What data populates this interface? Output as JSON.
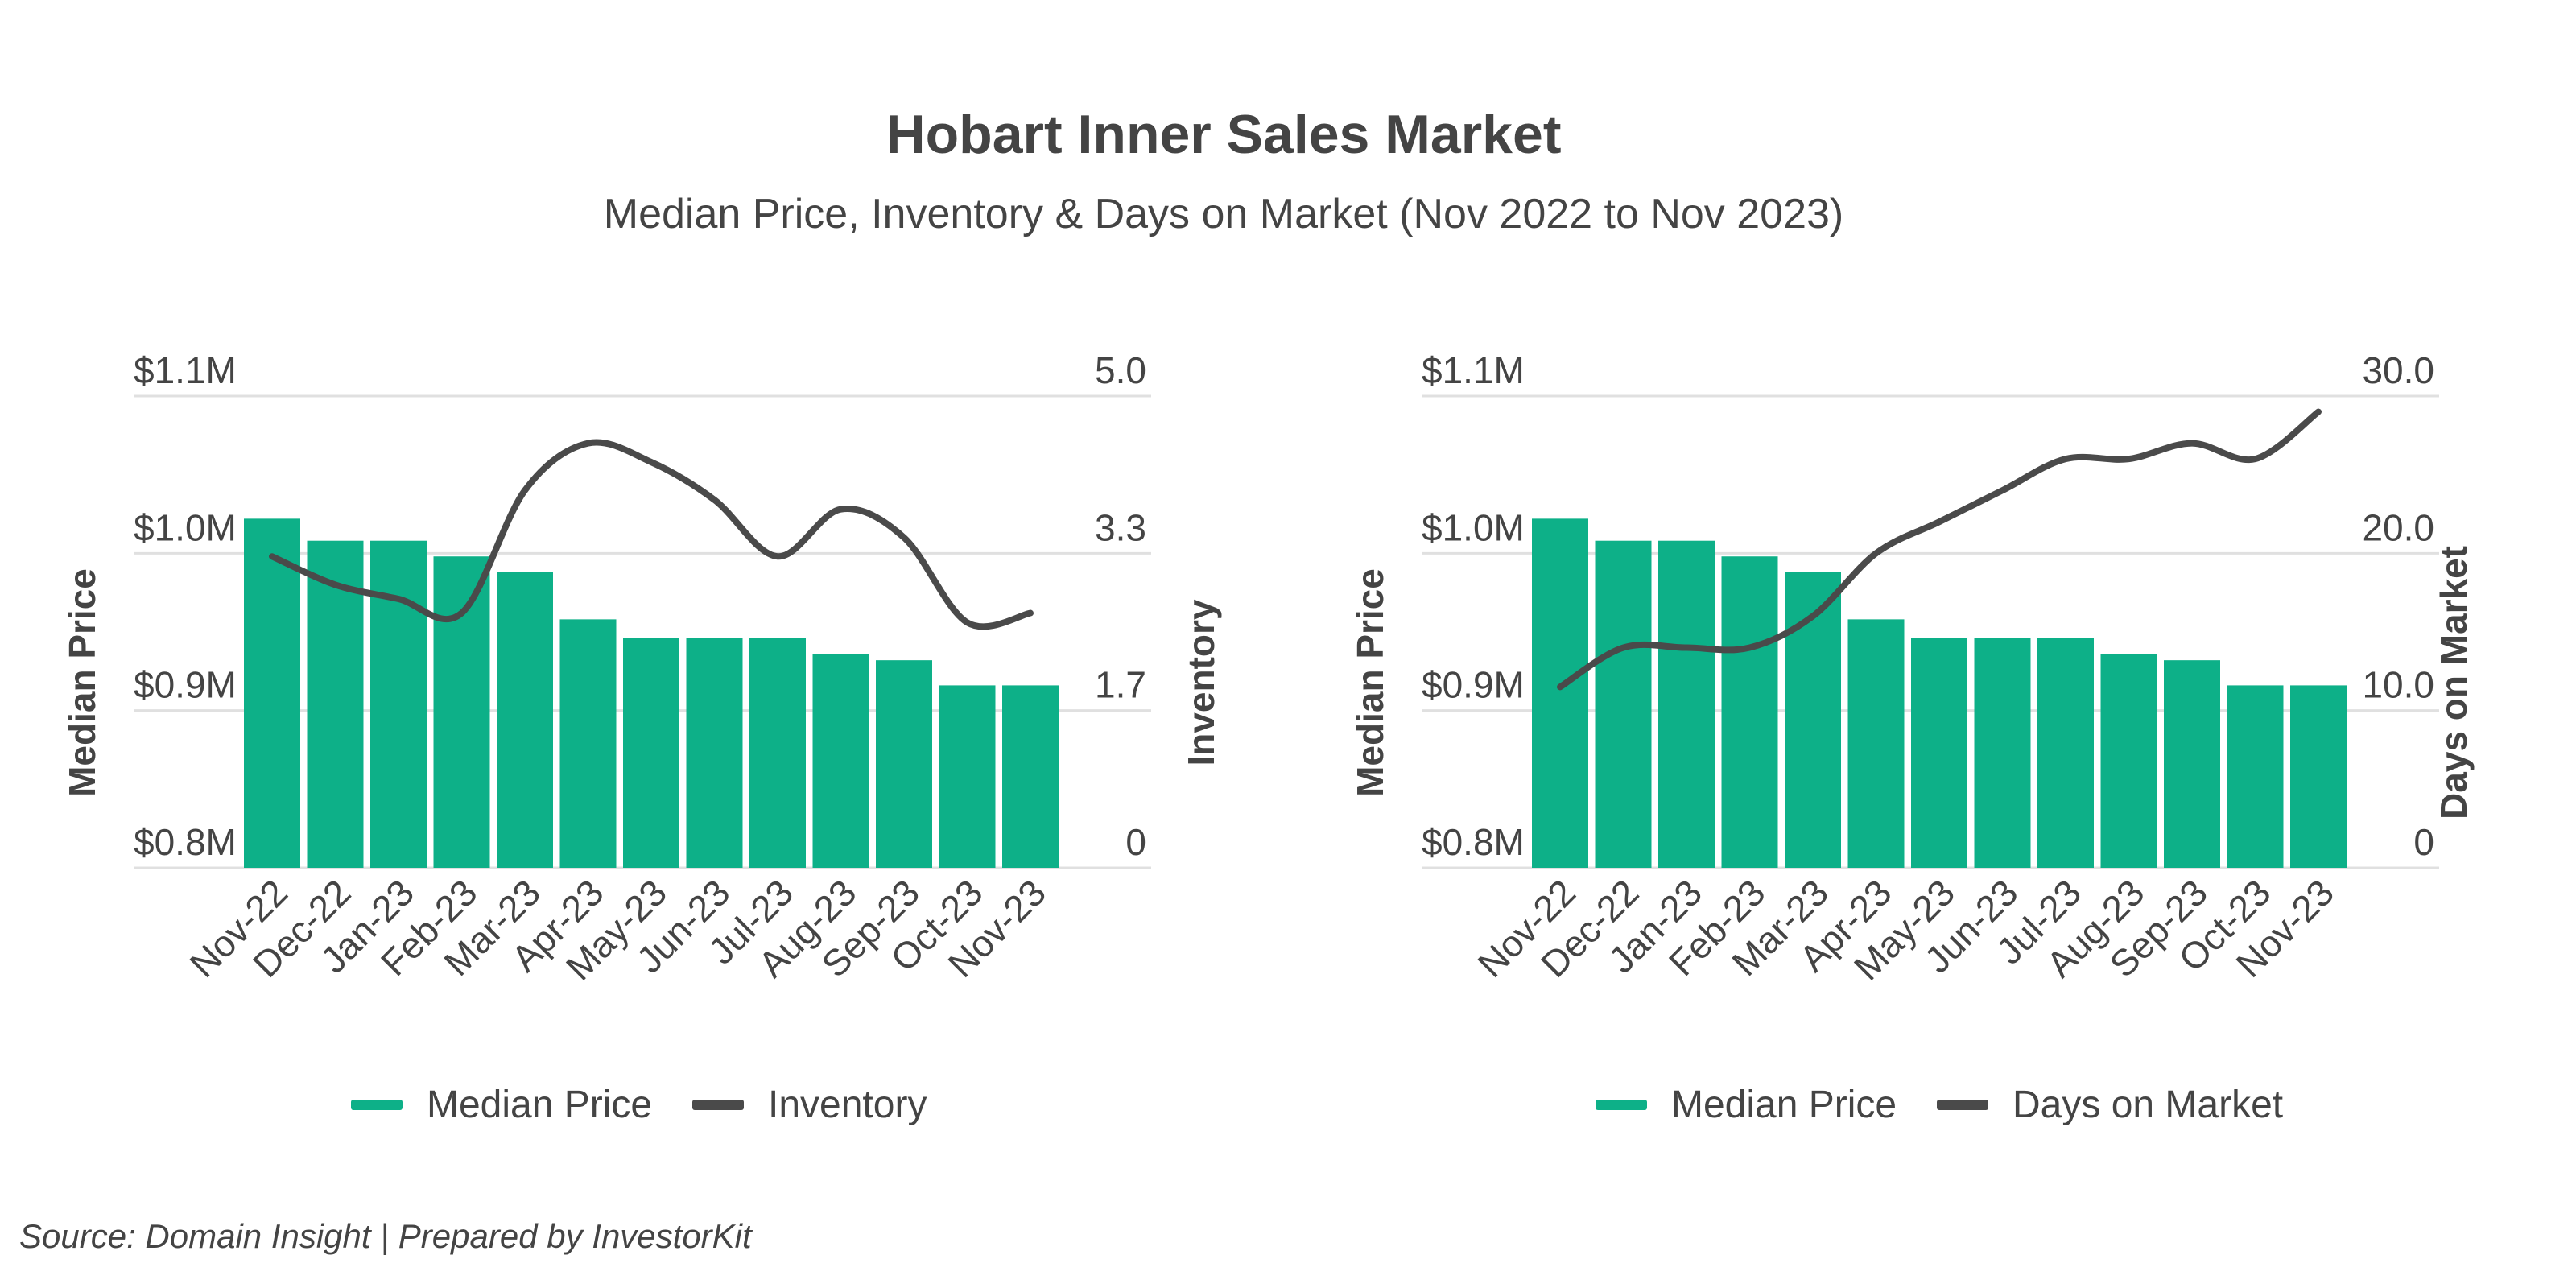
{
  "title": "Hobart Inner Sales Market",
  "subtitle": "Median Price, Inventory & Days on Market (Nov 2022 to Nov 2023)",
  "source": "Source: Domain Insight | Prepared by InvestorKit",
  "colors": {
    "bar": "#0db088",
    "line": "#4a4a4a",
    "grid": "#e0e0e0",
    "text": "#444444"
  },
  "chart_data": [
    {
      "type": "bar",
      "categories": [
        "Nov-22",
        "Dec-22",
        "Jan-23",
        "Feb-23",
        "Mar-23",
        "Apr-23",
        "May-23",
        "Jun-23",
        "Jul-23",
        "Aug-23",
        "Sep-23",
        "Oct-23",
        "Nov-23"
      ],
      "series": [
        {
          "name": "Median Price",
          "type": "bar",
          "axis": "left",
          "values": [
            1022000,
            1008000,
            1008000,
            998000,
            988000,
            958000,
            946000,
            946000,
            946000,
            936000,
            932000,
            916000,
            916000
          ]
        },
        {
          "name": "Inventory",
          "type": "line",
          "axis": "right",
          "values": [
            3.3,
            3.0,
            2.85,
            2.7,
            4.0,
            4.5,
            4.3,
            3.9,
            3.3,
            3.8,
            3.5,
            2.6,
            2.7
          ]
        }
      ],
      "ylabel": "Median Price",
      "ylabel_right": "Inventory",
      "ylim": [
        800000,
        1100000
      ],
      "yticks": [
        "$0.8M",
        "$0.9M",
        "$1.0M",
        "$1.1M"
      ],
      "ylim_right": [
        0,
        5
      ],
      "yticks_right": [
        "0",
        "1.7",
        "3.3",
        "5.0"
      ],
      "legend": [
        "Median Price",
        "Inventory"
      ],
      "legend_position": "bottom",
      "grid": true
    },
    {
      "type": "bar",
      "categories": [
        "Nov-22",
        "Dec-22",
        "Jan-23",
        "Feb-23",
        "Mar-23",
        "Apr-23",
        "May-23",
        "Jun-23",
        "Jul-23",
        "Aug-23",
        "Sep-23",
        "Oct-23",
        "Nov-23"
      ],
      "series": [
        {
          "name": "Median Price",
          "type": "bar",
          "axis": "left",
          "values": [
            1022000,
            1008000,
            1008000,
            998000,
            988000,
            958000,
            946000,
            946000,
            946000,
            936000,
            932000,
            916000,
            916000
          ]
        },
        {
          "name": "Days on Market",
          "type": "line",
          "axis": "right",
          "values": [
            11.5,
            14,
            14,
            14,
            16,
            20,
            22,
            24,
            26,
            26,
            27,
            26,
            29
          ]
        }
      ],
      "ylabel": "Median Price",
      "ylabel_right": "Days on Market",
      "ylim": [
        800000,
        1100000
      ],
      "yticks": [
        "$0.8M",
        "$0.9M",
        "$1.0M",
        "$1.1M"
      ],
      "ylim_right": [
        0,
        30
      ],
      "yticks_right": [
        "0",
        "10.0",
        "20.0",
        "30.0"
      ],
      "legend": [
        "Median Price",
        "Days on Market"
      ],
      "legend_position": "bottom",
      "grid": true
    }
  ]
}
